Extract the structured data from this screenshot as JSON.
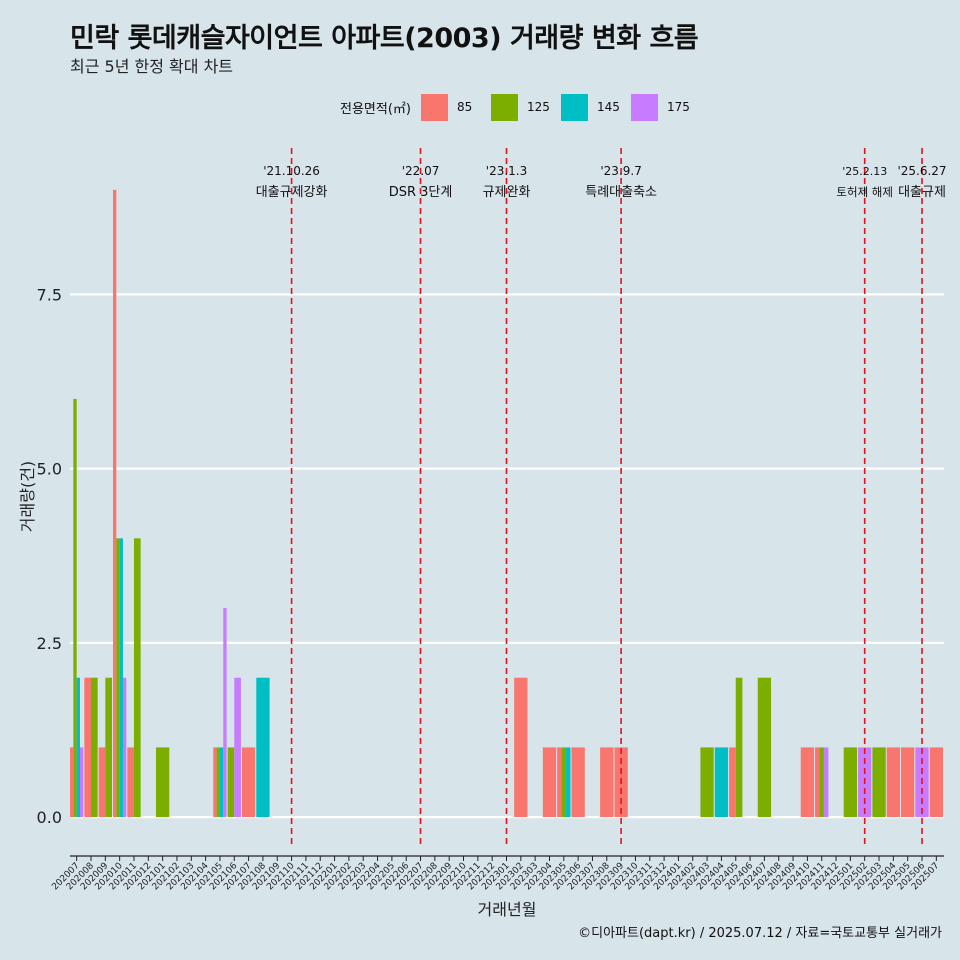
{
  "title": "민락 롯데캐슬자이언트 아파트(2003) 거래량 변화 흐름",
  "subtitle": "최근 5년 한정 확대 차트",
  "legend": {
    "title": "전용면적(㎡)",
    "items": [
      {
        "label": "85",
        "color": "#f8766d"
      },
      {
        "label": "125",
        "color": "#7cae00"
      },
      {
        "label": "145",
        "color": "#00bfc4"
      },
      {
        "label": "175",
        "color": "#c77cff"
      }
    ]
  },
  "caption": "©디아파트(dapt.kr) / 2025.07.12 / 자료=국토교통부 실거래가",
  "chart_data": {
    "type": "bar",
    "xlabel": "거래년월",
    "ylabel": "거래량(건)",
    "ylim": [
      -0.4,
      9.6
    ],
    "yticks": [
      0.0,
      2.5,
      5.0,
      7.5
    ],
    "ytick_labels": [
      "0.0",
      "2.5",
      "5.0",
      "7.5"
    ],
    "categories": [
      "202007",
      "202008",
      "202009",
      "202010",
      "202011",
      "202012",
      "202101",
      "202102",
      "202103",
      "202104",
      "202105",
      "202106",
      "202107",
      "202108",
      "202109",
      "202110",
      "202111",
      "202112",
      "202201",
      "202202",
      "202203",
      "202204",
      "202205",
      "202206",
      "202207",
      "202208",
      "202209",
      "202210",
      "202211",
      "202212",
      "202301",
      "202302",
      "202303",
      "202304",
      "202305",
      "202306",
      "202307",
      "202308",
      "202309",
      "202310",
      "202311",
      "202312",
      "202401",
      "202402",
      "202403",
      "202404",
      "202405",
      "202406",
      "202407",
      "202408",
      "202409",
      "202410",
      "202411",
      "202412",
      "202501",
      "202502",
      "202503",
      "202504",
      "202505",
      "202506",
      "202507"
    ],
    "grid": true,
    "bars": [
      {
        "month": "202007",
        "values": {
          "85": 1,
          "125": 6,
          "145": 2,
          "175": 1
        }
      },
      {
        "month": "202008",
        "values": {
          "85": 2,
          "125": 2
        }
      },
      {
        "month": "202009",
        "values": {
          "85": 1,
          "125": 2
        }
      },
      {
        "month": "202010",
        "values": {
          "85": 9,
          "125": 4,
          "145": 4,
          "175": 2
        }
      },
      {
        "month": "202011",
        "values": {
          "85": 1,
          "125": 4
        }
      },
      {
        "month": "202101",
        "values": {
          "125": 1
        }
      },
      {
        "month": "202105",
        "values": {
          "85": 1,
          "125": 1,
          "145": 1,
          "175": 3
        }
      },
      {
        "month": "202106",
        "values": {
          "125": 1,
          "175": 2
        }
      },
      {
        "month": "202107",
        "values": {
          "85": 1
        }
      },
      {
        "month": "202108",
        "values": {
          "145": 2
        }
      },
      {
        "month": "202302",
        "values": {
          "85": 2
        }
      },
      {
        "month": "202304",
        "values": {
          "85": 1
        }
      },
      {
        "month": "202305",
        "values": {
          "125": 1,
          "145": 1,
          "85": 1
        }
      },
      {
        "month": "202306",
        "values": {
          "85": 1
        }
      },
      {
        "month": "202308",
        "values": {
          "85": 1
        }
      },
      {
        "month": "202309",
        "values": {
          "85": 1
        }
      },
      {
        "month": "202403",
        "values": {
          "125": 1
        }
      },
      {
        "month": "202404",
        "values": {
          "145": 1
        }
      },
      {
        "month": "202405",
        "values": {
          "85": 1,
          "125": 2
        }
      },
      {
        "month": "202407",
        "values": {
          "125": 2
        }
      },
      {
        "month": "202410",
        "values": {
          "85": 1
        }
      },
      {
        "month": "202411",
        "values": {
          "85": 1,
          "125": 1,
          "175": 1
        }
      },
      {
        "month": "202501",
        "values": {
          "125": 1
        }
      },
      {
        "month": "202502",
        "values": {
          "175": 1
        }
      },
      {
        "month": "202503",
        "values": {
          "125": 1
        }
      },
      {
        "month": "202504",
        "values": {
          "85": 1
        }
      },
      {
        "month": "202505",
        "values": {
          "85": 1
        }
      },
      {
        "month": "202506",
        "values": {
          "175": 1
        }
      },
      {
        "month": "202507",
        "values": {
          "85": 1
        }
      }
    ],
    "annotations": [
      {
        "month": "202110",
        "date": "'21.10.26",
        "label": "대출규제강화"
      },
      {
        "month": "202207",
        "date": "'22.07",
        "label": "DSR 3단계"
      },
      {
        "month": "202301",
        "date": "'23.1.3",
        "label": "규제완화"
      },
      {
        "month": "202309",
        "date": "'23.9.7",
        "label": "특례대출축소"
      },
      {
        "month": "202502",
        "date": "'25.2.13",
        "label": "토허제 해제"
      },
      {
        "month": "202506",
        "date": "'25.6.27",
        "label": "대출규제"
      }
    ]
  }
}
